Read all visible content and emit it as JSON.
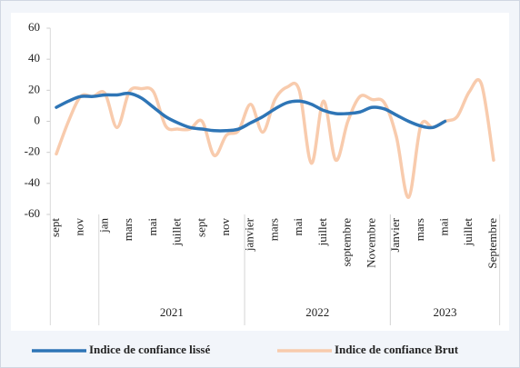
{
  "chart_data": {
    "type": "line",
    "categories": [
      "sept",
      null,
      "nov",
      null,
      "jan",
      null,
      "mars",
      null,
      "mai",
      null,
      "juillet",
      null,
      "sept",
      null,
      "nov",
      null,
      "janvier",
      null,
      "mars",
      null,
      "mai",
      null,
      "juillet",
      null,
      "septembre",
      null,
      "Novembre",
      null,
      "Janvier",
      null,
      "mars",
      null,
      "mai",
      null,
      "juillet",
      null,
      "Septembre"
    ],
    "groups": [
      {
        "label": "2021",
        "start": 4,
        "end": 15
      },
      {
        "label": "2022",
        "start": 16,
        "end": 27
      },
      {
        "label": "2023",
        "start": 28,
        "end": 36
      }
    ],
    "series": [
      {
        "name": "Indice de confiance lissé",
        "color": "#2e75b6",
        "values": [
          9,
          13,
          16,
          16,
          17,
          17,
          18,
          15,
          9,
          3,
          -1,
          -4,
          -5,
          -6,
          -6,
          -5,
          -1,
          3,
          8,
          12,
          13,
          11,
          7,
          5,
          5,
          6,
          9,
          8,
          4,
          0,
          -3,
          -4,
          0,
          null,
          null,
          null,
          null
        ]
      },
      {
        "name": "Indice de confiance Brut",
        "color": "#f8cbad",
        "values": [
          -21,
          0,
          16,
          16,
          18,
          -4,
          19,
          21,
          19,
          -3,
          -5,
          -5,
          0,
          -22,
          -9,
          -6,
          11,
          -7,
          14,
          22,
          20,
          -27,
          13,
          -25,
          0,
          16,
          14,
          12,
          -10,
          -49,
          -3,
          -4,
          0,
          3,
          19,
          24,
          -25
        ]
      }
    ],
    "ylim": [
      -60,
      60
    ],
    "yticks": [
      -60,
      -40,
      -20,
      0,
      20,
      40,
      60
    ],
    "grid": false,
    "legend": "bottom"
  }
}
